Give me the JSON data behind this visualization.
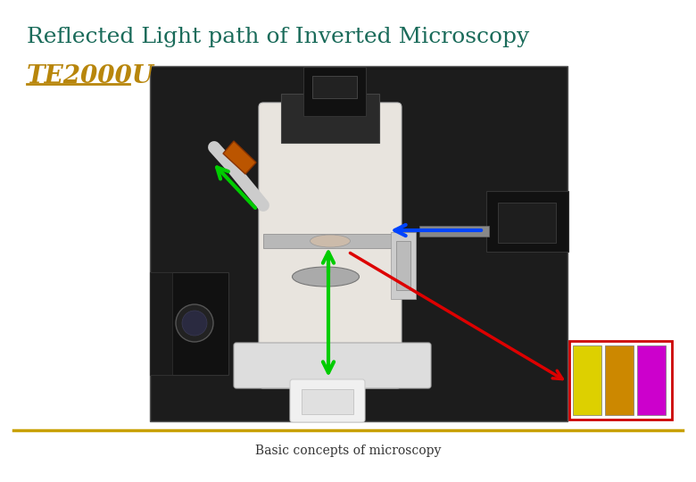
{
  "title": "Reflected Light path of Inverted Microscopy",
  "title_color": "#1a6b5a",
  "title_fontsize": 18,
  "subtitle": "TE2000U",
  "subtitle_color": "#b8860b",
  "subtitle_fontsize": 20,
  "footer": "Basic concepts of microscopy",
  "footer_color": "#333333",
  "footer_fontsize": 10,
  "footer_line_color": "#c8a000",
  "bg_color": "#ffffff",
  "green_color": "#00cc00",
  "blue_color": "#0044ff",
  "red_color": "#dd0000",
  "filter_colors": [
    "#ddd000",
    "#cc8800",
    "#cc00cc"
  ],
  "photo_bg": "#1c1c1c",
  "mic_body_color": "#e8e4de",
  "dark_part": "#111111"
}
